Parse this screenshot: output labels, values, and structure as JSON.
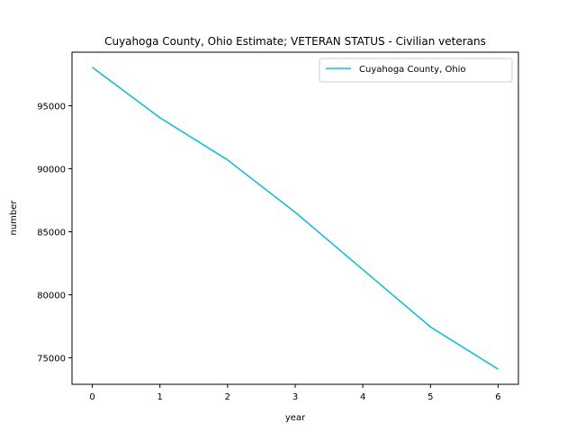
{
  "chart_data": {
    "type": "line",
    "title": "Cuyahoga County, Ohio Estimate; VETERAN STATUS - Civilian veterans",
    "xlabel": "year",
    "ylabel": "number",
    "x": [
      0,
      1,
      2,
      3,
      4,
      5,
      6
    ],
    "series": [
      {
        "name": "Cuyahoga County, Ohio",
        "values": [
          98050,
          94050,
          90700,
          86550,
          82000,
          77450,
          74100
        ],
        "color": "#17becf"
      }
    ],
    "xlim": [
      -0.3,
      6.3
    ],
    "ylim": [
      72900,
      99250
    ],
    "xticks": [
      "0",
      "1",
      "2",
      "3",
      "4",
      "5",
      "6"
    ],
    "xtick_values": [
      0,
      1,
      2,
      3,
      4,
      5,
      6
    ],
    "yticks": [
      "75000",
      "80000",
      "85000",
      "90000",
      "95000"
    ],
    "ytick_values": [
      75000,
      80000,
      85000,
      90000,
      95000
    ],
    "grid": false,
    "legend_position": "upper right"
  }
}
